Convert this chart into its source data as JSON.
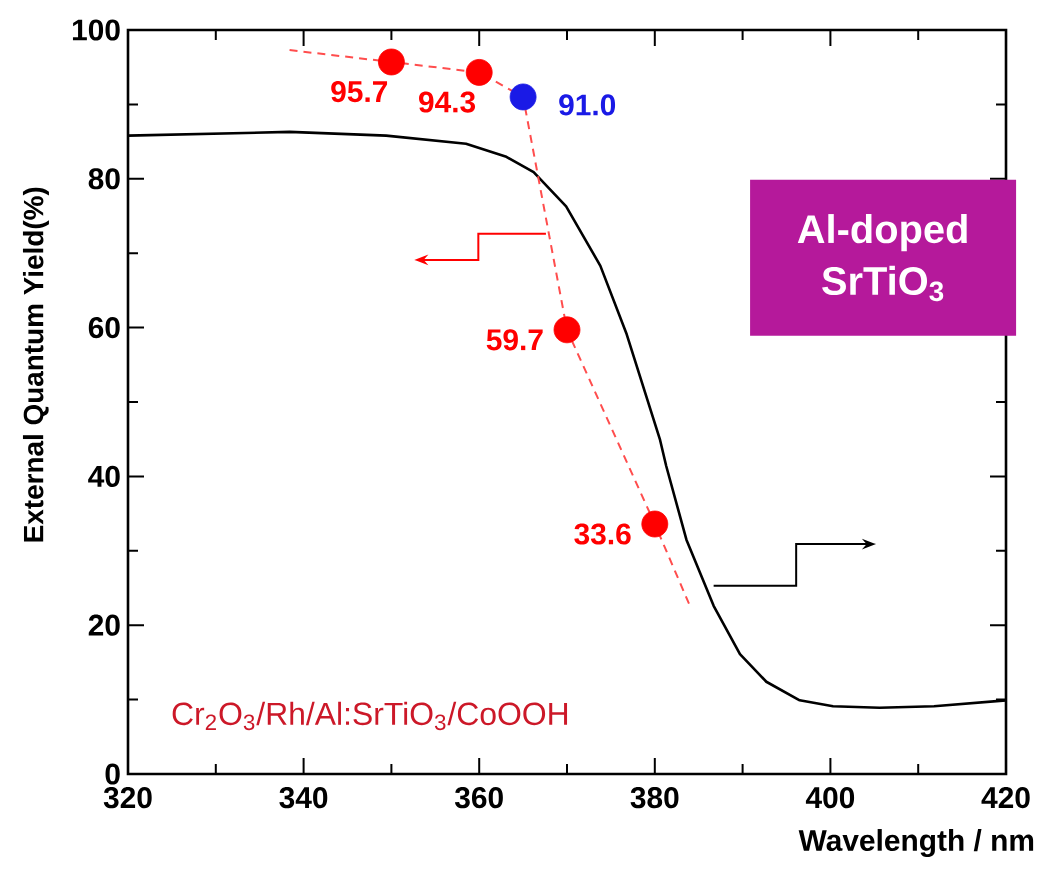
{
  "chart_data": {
    "type": "line",
    "xlabel": "Wavelength / nm",
    "ylabel": "External Quantum Yield(%)",
    "xlim": [
      320,
      420
    ],
    "ylim": [
      0,
      100
    ],
    "xticks": [
      320,
      {
        "value": 330,
        "label": null
      },
      340,
      {
        "value": 350,
        "label": null
      },
      360,
      {
        "value": 370,
        "label": null
      },
      380,
      {
        "value": 390,
        "label": null
      },
      400,
      {
        "value": 410,
        "label": null
      },
      420
    ],
    "yticks": [
      0,
      {
        "value": 10,
        "label": null
      },
      20,
      {
        "value": 30,
        "label": null
      },
      40,
      {
        "value": 50,
        "label": null
      },
      60,
      {
        "value": 70,
        "label": null
      },
      80,
      {
        "value": 90,
        "label": null
      },
      100
    ],
    "annotations": [
      "Al-doped SrTiO$_{3}$",
      "Cr$_{2}$O$_{3}$/Rh/Al:SrTiO$_{3}$/CoOOH"
    ],
    "series": [
      {
        "color": "#000000",
        "line_style": "solid",
        "marker": "none",
        "x": [
          320,
          338.4,
          349.4,
          358.5,
          363,
          366.2,
          369.9,
          373.8,
          376.8,
          380.6,
          381.3,
          383.6,
          386.7,
          389.7,
          392.7,
          396.5,
          400.3,
          405.6,
          411.8,
          420
        ],
        "values": [
          85.8,
          86.3,
          85.8,
          84.7,
          83,
          80.9,
          76.3,
          68.3,
          59.1,
          44.9,
          41.4,
          31.5,
          22.6,
          16.1,
          12.4,
          9.9,
          9.1,
          8.9,
          9.1,
          9.9
        ]
      },
      {
        "color": "#ff4d4d",
        "line_style": "dashed",
        "marker": "none",
        "x": [
          338.4,
          350,
          360,
          365,
          370,
          380,
          384
        ],
        "values": [
          97.3,
          95.7,
          94.3,
          91.0,
          59.7,
          33.6,
          22.6
        ]
      },
      {
        "type": "scatter",
        "color": "#ff0000",
        "marker": "circle",
        "x": [
          350,
          360,
          370,
          380
        ],
        "values": [
          95.7,
          94.3,
          59.7,
          33.6
        ],
        "value_labels": [
          "95.7",
          "94.3",
          "59.7",
          "33.6"
        ]
      },
      {
        "type": "scatter",
        "color": "#1a1ae6",
        "marker": "circle",
        "x": [
          365
        ],
        "values": [
          91.0
        ],
        "value_labels": [
          "91.0"
        ]
      }
    ]
  }
}
